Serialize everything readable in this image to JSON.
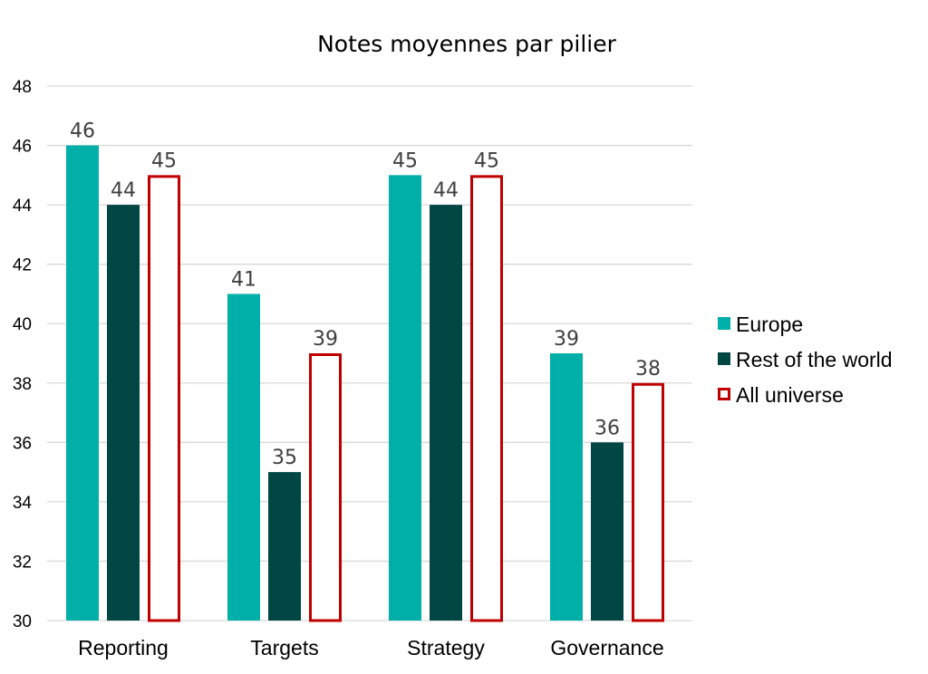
{
  "chart_data": {
    "type": "bar",
    "title": "Notes moyennes par pilier",
    "xlabel": "",
    "ylabel": "",
    "ylim": [
      30,
      48
    ],
    "yticks": [
      "30",
      "32",
      "34",
      "36",
      "38",
      "40",
      "42",
      "44",
      "46",
      "48"
    ],
    "grid": true,
    "legend_position": "right",
    "categories": [
      "Reporting",
      "Targets",
      "Strategy",
      "Governance"
    ],
    "series": [
      {
        "name": "Europe",
        "values": [
          46,
          41,
          45,
          39
        ],
        "labels": [
          "46",
          "41",
          "45",
          "39"
        ],
        "color": "#00b0a8",
        "style": "filled"
      },
      {
        "name": "Rest of the world",
        "values": [
          44,
          35,
          44,
          36
        ],
        "labels": [
          "44",
          "35",
          "44",
          "36"
        ],
        "color": "#004643",
        "style": "filled"
      },
      {
        "name": "All universe",
        "values": [
          45,
          39,
          45,
          38
        ],
        "labels": [
          "45",
          "39",
          "45",
          "38"
        ],
        "color": "#c00000",
        "style": "outline"
      }
    ]
  }
}
